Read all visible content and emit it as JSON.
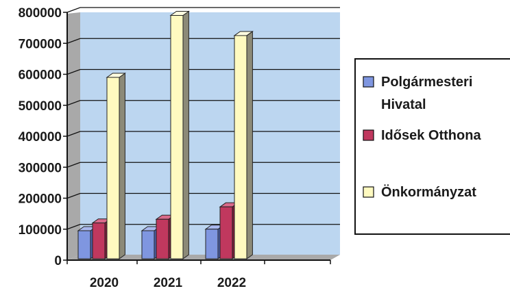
{
  "chart_data": {
    "type": "bar",
    "categories": [
      "2020",
      "2021",
      "2022"
    ],
    "series": [
      {
        "name": "Polgármesteri Hivatal",
        "name_lines": [
          "Polgármesteri",
          "Hivatal"
        ],
        "values": [
          95000,
          95000,
          100000
        ],
        "color": "#7f96e0",
        "side": "#4d63ad",
        "top": "#a9b8ee"
      },
      {
        "name": "Idősek Otthona",
        "name_lines": [
          "Idősek Otthona"
        ],
        "values": [
          120000,
          132000,
          172000
        ],
        "color": "#c0385e",
        "side": "#7f1f3b",
        "top": "#d96a8a"
      },
      {
        "name": "Önkormányzat",
        "name_lines": [
          "Önkormányzat"
        ],
        "values": [
          590000,
          790000,
          725000
        ],
        "color": "#fffac0",
        "side": "#8c8a78",
        "top": "#fffde0"
      }
    ],
    "ylim": [
      0,
      800000
    ],
    "yticks": [
      "0",
      "100000",
      "200000",
      "300000",
      "400000",
      "500000",
      "600000",
      "700000",
      "800000"
    ],
    "grid": true,
    "legend": "right",
    "background": "#bcd6f0",
    "wall_color": "#a9a9a9"
  }
}
